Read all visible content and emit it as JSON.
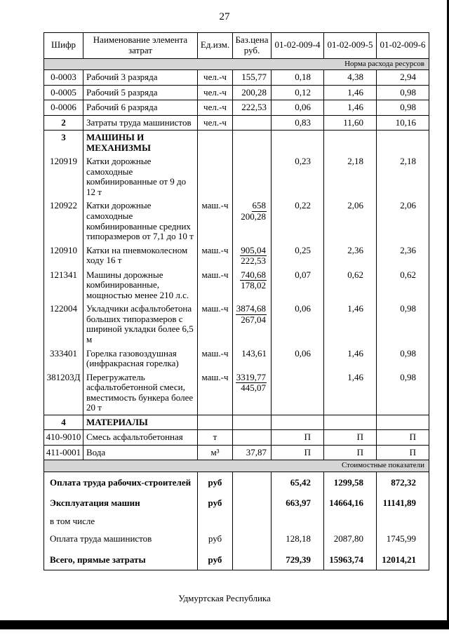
{
  "page": {
    "number": "27",
    "footer": "Удмуртская Республика"
  },
  "table": {
    "headers": [
      "Шифр",
      "Наименование элемента затрат",
      "Ед.изм.",
      "Баз.цена руб.",
      "01-02-009-4",
      "01-02-009-5",
      "01-02-009-6"
    ],
    "rows": [
      {
        "type": "band",
        "text": "Норма расхода ресурсов"
      },
      {
        "type": "res",
        "code": "0-0003",
        "name": "Рабочий 3 разряда",
        "unit": "чел.-ч",
        "price": "155,77",
        "v": [
          "0,18",
          "4,38",
          "2,94"
        ],
        "sep": true
      },
      {
        "type": "res",
        "code": "0-0005",
        "name": "Рабочий 5 разряда",
        "unit": "чел.-ч",
        "price": "200,28",
        "v": [
          "0,12",
          "1,46",
          "0,98"
        ],
        "sep": true
      },
      {
        "type": "res",
        "code": "0-0006",
        "name": "Рабочий 6 разряда",
        "unit": "чел.-ч",
        "price": "222,53",
        "v": [
          "0,06",
          "1,46",
          "0,98"
        ],
        "sep": true
      },
      {
        "type": "res",
        "code": "2",
        "code_bold": true,
        "name": "Затраты труда машинистов",
        "unit": "чел.-ч",
        "price": "",
        "v": [
          "0,83",
          "11,60",
          "10,16"
        ],
        "sep": true
      },
      {
        "type": "res",
        "code": "3",
        "code_bold": true,
        "name": "МАШИНЫ И МЕХАНИЗМЫ",
        "name_bold": true,
        "unit": "",
        "price": "",
        "v": [
          "",
          "",
          ""
        ],
        "sep": false
      },
      {
        "type": "res",
        "code": "120919",
        "name": "Катки дорожные самоходные комбинированные от 9 до 12 т",
        "unit": "",
        "price": "",
        "v": [
          "0,23",
          "2,18",
          "2,18"
        ],
        "sep": false
      },
      {
        "type": "res",
        "code": "120922",
        "name": "Катки дорожные самоходные комбинированные средних типоразмеров от 7,1 до 10 т",
        "unit": "маш.-ч",
        "price_top": "658",
        "price_bottom": "200,28",
        "v": [
          "0,22",
          "2,06",
          "2,06"
        ],
        "sep": false
      },
      {
        "type": "res",
        "code": "120910",
        "name": "Катки на пневмоколесном ходу 16 т",
        "unit": "маш.-ч",
        "price_top": "905,04",
        "price_bottom": "222,53",
        "v": [
          "0,25",
          "2,36",
          "2,36"
        ],
        "sep": false
      },
      {
        "type": "res",
        "code": "121341",
        "name": "Машины дорожные комбинированные, мощностью менее 210 л.с.",
        "unit": "маш.-ч",
        "price_top": "740,68",
        "price_bottom": "178,02",
        "v": [
          "0,07",
          "0,62",
          "0,62"
        ],
        "sep": false
      },
      {
        "type": "res",
        "code": "122004",
        "name": "Укладчики асфальтобетона больших типоразмеров с шириной укладки более 6,5 м",
        "unit": "маш.-ч",
        "price_top": "3874,68",
        "price_bottom": "267,04",
        "v": [
          "0,06",
          "1,46",
          "0,98"
        ],
        "sep": false
      },
      {
        "type": "res",
        "code": "333401",
        "name": "Горелка газовоздушная (инфракрасная горелка)",
        "unit": "маш.-ч",
        "price": "143,61",
        "v": [
          "0,06",
          "1,46",
          "0,98"
        ],
        "sep": false
      },
      {
        "type": "res",
        "code": "381203Д",
        "name": "Перегружатель асфальтобетонной смеси, вместимость бункера более 20 т",
        "unit": "маш.-ч",
        "price_top": "3319,77",
        "price_bottom": "445,07",
        "v": [
          "",
          "1,46",
          "0,98"
        ],
        "sep": true
      },
      {
        "type": "res",
        "code": "4",
        "code_bold": true,
        "name": "МАТЕРИАЛЫ",
        "name_bold": true,
        "unit": "",
        "price": "",
        "v": [
          "",
          "",
          ""
        ],
        "sep": true
      },
      {
        "type": "res",
        "code": "410-9010",
        "name": "Смесь асфальтобетонная",
        "unit": "т",
        "price": "",
        "v": [
          "П",
          "П",
          "П"
        ],
        "sep": true
      },
      {
        "type": "res",
        "code": "411-0001",
        "name": "Вода",
        "unit": "м³",
        "price": "37,87",
        "v": [
          "П",
          "П",
          "П"
        ],
        "sep": true
      },
      {
        "type": "band",
        "text": "Стоимостные показатели"
      },
      {
        "type": "cost",
        "name": "Оплата труда рабочих-строителей",
        "unit": "руб",
        "v": [
          "65,42",
          "1299,58",
          "872,32"
        ],
        "bold": true
      },
      {
        "type": "cost",
        "name": "Эксплуатация машин",
        "unit": "руб",
        "v": [
          "663,97",
          "14664,16",
          "11141,89"
        ],
        "bold": true
      },
      {
        "type": "cost",
        "name": "в том числе",
        "unit": "",
        "v": [
          "",
          "",
          ""
        ],
        "bold": false,
        "plain": true
      },
      {
        "type": "cost",
        "name": "Оплата труда машинистов",
        "unit": "руб",
        "v": [
          "128,18",
          "2087,80",
          "1745,99"
        ],
        "bold": false
      },
      {
        "type": "cost",
        "name": "Всего, прямые затраты",
        "unit": "руб",
        "v": [
          "729,39",
          "15963,74",
          "12014,21"
        ],
        "bold": true
      }
    ]
  }
}
